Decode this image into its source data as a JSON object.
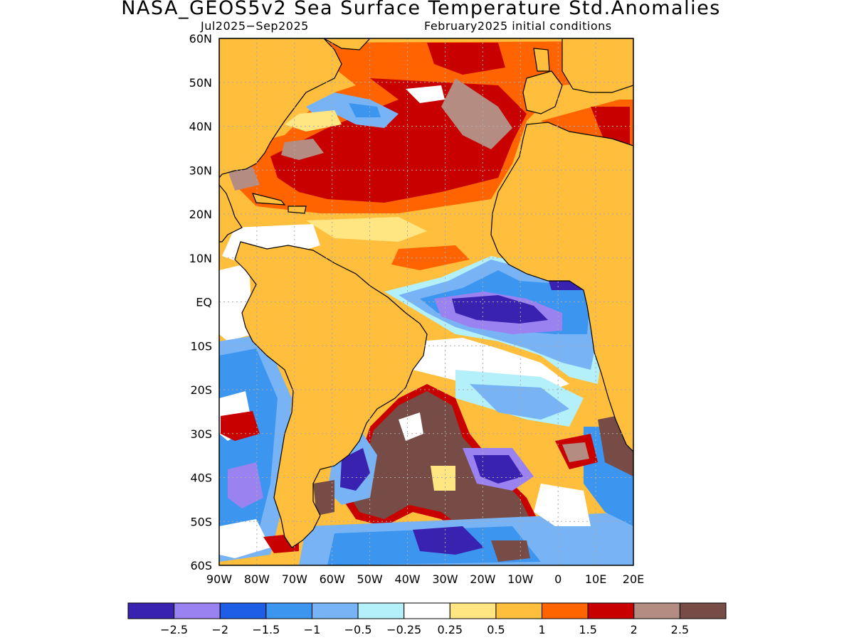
{
  "title": "NASA_GEOS5v2 Sea Surface Temperature Std.Anomalies",
  "subtitle_left": "Jul2025−Sep2025",
  "subtitle_right": "February2025 initial conditions",
  "lat_labels": [
    "60N",
    "50N",
    "40N",
    "30N",
    "20N",
    "10N",
    "EQ",
    "10S",
    "20S",
    "30S",
    "40S",
    "50S",
    "60S"
  ],
  "lon_labels": [
    "90W",
    "80W",
    "70W",
    "60W",
    "50W",
    "40W",
    "30W",
    "20W",
    "10W",
    "0",
    "10E",
    "20E"
  ],
  "colorbar": {
    "colors": [
      "#3a22b0",
      "#9a82f0",
      "#1e5ee6",
      "#3c96f0",
      "#78b4f5",
      "#b4f0fa",
      "#ffffff",
      "#ffe682",
      "#ffbe3c",
      "#ff6400",
      "#c80000",
      "#b48c82",
      "#784c46"
    ],
    "labels": [
      "−2.5",
      "−2",
      "−1.5",
      "−1",
      "−0.5",
      "−0.25",
      "0.25",
      "0.5",
      "1",
      "1.5",
      "2",
      "2.5"
    ]
  },
  "palette": {
    "land": "#ffbe3c",
    "ocean_base": "#ffbe3c"
  }
}
